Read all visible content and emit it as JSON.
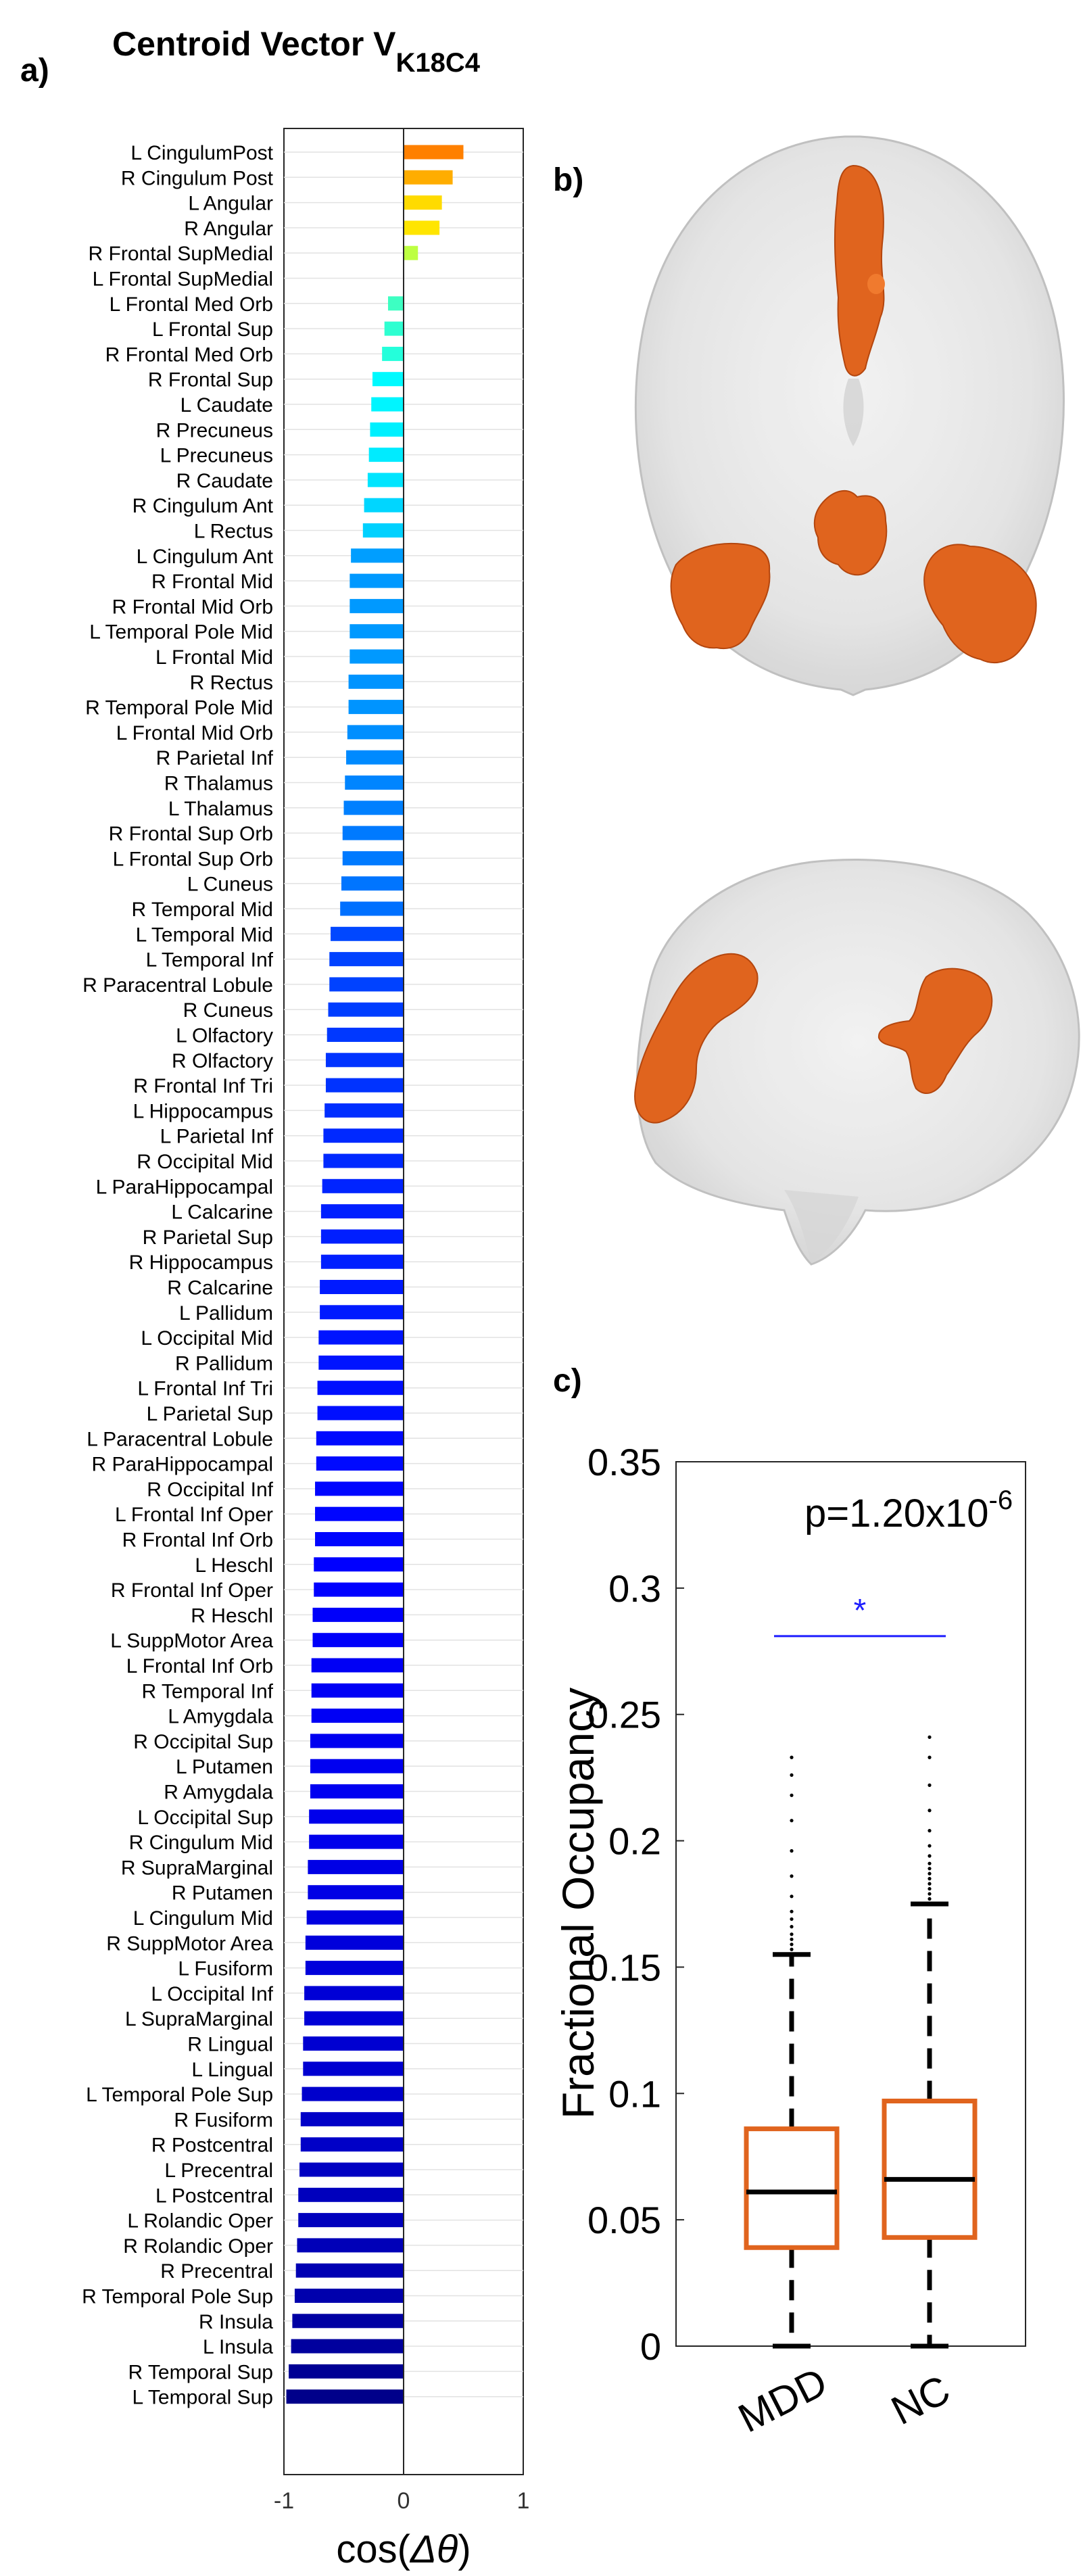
{
  "figure": {
    "panel_a_label": "a)",
    "panel_b_label": "b)",
    "panel_c_label": "c)",
    "title_main": "Centroid Vector V",
    "title_sub": "K18C4"
  },
  "brain_render": {
    "top_view": "axial-brain-render",
    "side_view": "sagittal-brain-render",
    "glass_color": "#dcdcdc",
    "region_color": "#e0641e"
  },
  "chart_data": [
    {
      "type": "bar",
      "orientation": "horizontal",
      "title": "Centroid Vector V_K18C4",
      "xlabel": "cos(Δθ)",
      "xlabel_prefix": "cos(",
      "xlabel_symbol": "Δθ",
      "xlabel_suffix": ")",
      "xlim": [
        -1,
        1
      ],
      "xticks": [
        -1,
        0,
        1
      ],
      "grid": "horizontal",
      "categories": [
        "L CingulumPost",
        "R Cingulum Post",
        "L Angular",
        "R Angular",
        "R Frontal SupMedial",
        "L Frontal SupMedial",
        "L Frontal Med Orb",
        "L Frontal Sup",
        "R Frontal Med Orb",
        "R Frontal Sup",
        "L Caudate",
        "R Precuneus",
        "L Precuneus",
        "R Caudate",
        "R Cingulum Ant",
        "L Rectus",
        "L Cingulum Ant",
        "R Frontal Mid",
        "R Frontal Mid Orb",
        "L Temporal Pole Mid",
        "L Frontal Mid",
        "R Rectus",
        "R Temporal Pole Mid",
        "L Frontal Mid Orb",
        "R Parietal Inf",
        "R Thalamus",
        "L Thalamus",
        "R Frontal Sup Orb",
        "L Frontal Sup Orb",
        "L Cuneus",
        "R Temporal Mid",
        "L Temporal Mid",
        "L Temporal Inf",
        "R Paracentral Lobule",
        "R Cuneus",
        "L Olfactory",
        "R Olfactory",
        "R Frontal Inf Tri",
        "L Hippocampus",
        "L Parietal Inf",
        "R Occipital Mid",
        "L ParaHippocampal",
        "L Calcarine",
        "R Parietal Sup",
        "R Hippocampus",
        "R Calcarine",
        "L Pallidum",
        "L Occipital Mid",
        "R Pallidum",
        "L Frontal Inf Tri",
        "L Parietal Sup",
        "L Paracentral Lobule",
        "R ParaHippocampal",
        "R Occipital Inf",
        "L Frontal Inf Oper",
        "R Frontal Inf Orb",
        "L Heschl",
        "R Frontal Inf Oper",
        "R Heschl",
        "L SuppMotor Area",
        "L Frontal Inf Orb",
        "R Temporal Inf",
        "L Amygdala",
        "R Occipital Sup",
        "L Putamen",
        "R Amygdala",
        "L Occipital Sup",
        "R Cingulum Mid",
        "R SupraMarginal",
        "R Putamen",
        "L Cingulum Mid",
        "R SuppMotor Area",
        "L Fusiform",
        "L Occipital Inf",
        "L SupraMarginal",
        "R Lingual",
        "L Lingual",
        "L Temporal Pole Sup",
        "R Fusiform",
        "R Postcentral",
        "L Precentral",
        "L Postcentral",
        "L Rolandic Oper",
        "R Rolandic Oper",
        "R Precentral",
        "R Temporal Pole Sup",
        "R Insula",
        "L Insula",
        "R Temporal Sup",
        "L Temporal Sup"
      ],
      "values": [
        0.5,
        0.41,
        0.32,
        0.3,
        0.12,
        0.0,
        -0.13,
        -0.16,
        -0.18,
        -0.26,
        -0.27,
        -0.28,
        -0.29,
        -0.3,
        -0.33,
        -0.34,
        -0.44,
        -0.45,
        -0.45,
        -0.45,
        -0.45,
        -0.46,
        -0.46,
        -0.47,
        -0.48,
        -0.49,
        -0.5,
        -0.51,
        -0.51,
        -0.52,
        -0.53,
        -0.61,
        -0.62,
        -0.62,
        -0.63,
        -0.64,
        -0.65,
        -0.65,
        -0.66,
        -0.67,
        -0.67,
        -0.68,
        -0.69,
        -0.69,
        -0.69,
        -0.7,
        -0.7,
        -0.71,
        -0.71,
        -0.72,
        -0.72,
        -0.73,
        -0.73,
        -0.74,
        -0.74,
        -0.74,
        -0.75,
        -0.75,
        -0.76,
        -0.76,
        -0.77,
        -0.77,
        -0.77,
        -0.78,
        -0.78,
        -0.78,
        -0.79,
        -0.79,
        -0.8,
        -0.8,
        -0.81,
        -0.82,
        -0.82,
        -0.83,
        -0.83,
        -0.84,
        -0.84,
        -0.85,
        -0.86,
        -0.86,
        -0.87,
        -0.88,
        -0.88,
        -0.89,
        -0.9,
        -0.91,
        -0.93,
        -0.94,
        -0.96,
        -0.98
      ]
    },
    {
      "type": "box",
      "ylabel": "Fractional Occupancy",
      "ylim": [
        0,
        0.35
      ],
      "yticks": [
        0,
        0.05,
        0.1,
        0.15,
        0.2,
        0.25,
        0.3,
        0.35
      ],
      "ytick_labels": [
        "0",
        "0.05",
        "0.1",
        "0.15",
        "0.2",
        "0.25",
        "0.3",
        "0.35"
      ],
      "categories": [
        "MDD",
        "NC"
      ],
      "boxes": [
        {
          "name": "MDD",
          "min": 0.0,
          "q1": 0.039,
          "median": 0.061,
          "q3": 0.086,
          "whisker_high": 0.155,
          "outliers": [
            0.157,
            0.159,
            0.161,
            0.163,
            0.166,
            0.169,
            0.172,
            0.178,
            0.186,
            0.196,
            0.208,
            0.218,
            0.226,
            0.233
          ]
        },
        {
          "name": "NC",
          "min": 0.0,
          "q1": 0.043,
          "median": 0.066,
          "q3": 0.097,
          "whisker_high": 0.175,
          "outliers": [
            0.177,
            0.179,
            0.181,
            0.183,
            0.185,
            0.187,
            0.189,
            0.191,
            0.194,
            0.198,
            0.204,
            0.212,
            0.222,
            0.233,
            0.241
          ]
        }
      ],
      "box_color": "#e0641e",
      "significance": {
        "label_prefix": "p=1.20x10",
        "label_exp": "-6",
        "marker": "*",
        "bar_y": 0.281,
        "color": "#1e1eff"
      }
    }
  ]
}
